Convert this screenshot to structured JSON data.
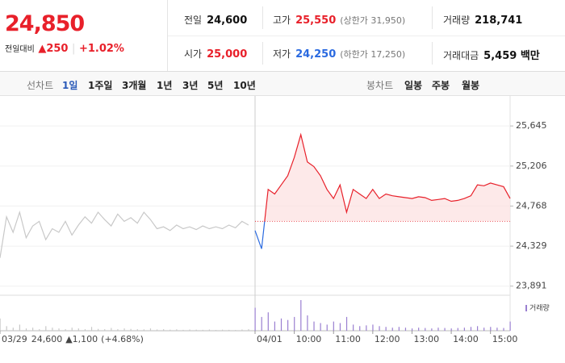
{
  "header": {
    "price": "24,850",
    "change_label": "전일대비",
    "change": "▲250",
    "change_pct": "+1.02%",
    "stats": [
      {
        "label": "전일",
        "value": "24,600"
      },
      {
        "label": "고가",
        "value": "25,550",
        "note": "(상한가 31,950)"
      },
      {
        "label": "거래량",
        "value": "218,741"
      },
      {
        "label": "시가",
        "value": "25,000"
      },
      {
        "label": "저가",
        "value": "24,250",
        "note": "(하한가 17,250)"
      },
      {
        "label": "거래대금",
        "value": "5,459 백만"
      }
    ]
  },
  "tabs": {
    "line_label": "선차트",
    "line": [
      "1일",
      "1주일",
      "3개월",
      "1년",
      "3년",
      "5년",
      "10년"
    ],
    "candle_label": "봉차트",
    "candle": [
      "일봉",
      "주봉",
      "월봉"
    ]
  },
  "chart_data": {
    "type": "line",
    "categories": [
      "03/29",
      null,
      null,
      null,
      null,
      null,
      null,
      null,
      null,
      null,
      null,
      null,
      null,
      null,
      null,
      null,
      null,
      null,
      null,
      null,
      null,
      null,
      null,
      null,
      null,
      null,
      null,
      null,
      null,
      null,
      null,
      null,
      null,
      null,
      null,
      null,
      null,
      null,
      null,
      "04/01",
      null,
      null,
      null,
      null,
      null,
      "10:00",
      null,
      null,
      null,
      null,
      null,
      "11:00",
      null,
      null,
      null,
      null,
      null,
      "12:00",
      null,
      null,
      null,
      null,
      null,
      "13:00",
      null,
      null,
      null,
      null,
      null,
      "14:00",
      null,
      null,
      null,
      null,
      null,
      "15:00",
      null,
      null,
      null
    ],
    "series": [
      {
        "color": "#c8c8c8",
        "volume_color": "#c8c8c8",
        "values": [
          24200,
          24650,
          24480,
          24700,
          24420,
          24550,
          24600,
          24400,
          24520,
          24480,
          24600,
          24450,
          24560,
          24650,
          24580,
          24700,
          24620,
          24550,
          24680,
          24600,
          24640,
          24580,
          24700,
          24620,
          24520,
          24540,
          24500,
          24560,
          24520,
          24540,
          24510,
          24550,
          24520,
          24540,
          24520,
          24560,
          24530,
          24600,
          24560,
          null,
          null,
          null,
          null,
          null,
          null,
          null,
          null,
          null,
          null,
          null,
          null,
          null,
          null,
          null,
          null,
          null,
          null,
          null,
          null,
          null,
          null,
          null,
          null,
          null,
          null,
          null,
          null,
          null,
          null,
          null,
          null,
          null,
          null,
          null,
          null,
          null,
          null,
          null,
          null
        ],
        "volume": [
          8000,
          3000,
          2000,
          4000,
          1500,
          2000,
          1000,
          3000,
          2000,
          1500,
          1000,
          2000,
          1500,
          1000,
          2500,
          1200,
          1000,
          1800,
          1000,
          1500,
          1200,
          1000,
          900,
          1500,
          800,
          1000,
          700,
          900,
          600,
          800,
          700,
          600,
          800,
          500,
          700,
          600,
          500,
          800,
          1000,
          null,
          null,
          null,
          null,
          null,
          null,
          null,
          null,
          null,
          null,
          null,
          null,
          null,
          null,
          null,
          null,
          null,
          null,
          null,
          null,
          null,
          null,
          null,
          null,
          null,
          null,
          null,
          null,
          null,
          null,
          null,
          null,
          null,
          null,
          null,
          null,
          null,
          null,
          null,
          null
        ]
      },
      {
        "color": "#e8202a",
        "down_color": "#2a6ae0",
        "fill": "#fde3e3",
        "volume_color": "#9a7fd1",
        "values": [
          null,
          null,
          null,
          null,
          null,
          null,
          null,
          null,
          null,
          null,
          null,
          null,
          null,
          null,
          null,
          null,
          null,
          null,
          null,
          null,
          null,
          null,
          null,
          null,
          null,
          null,
          null,
          null,
          null,
          null,
          null,
          null,
          null,
          null,
          null,
          null,
          null,
          null,
          null,
          24500,
          24300,
          24950,
          24900,
          25000,
          25100,
          25300,
          25550,
          25250,
          25200,
          25100,
          24950,
          24850,
          25000,
          24700,
          24950,
          24900,
          24850,
          24950,
          24850,
          24900,
          24880,
          24870,
          24860,
          24850,
          24870,
          24860,
          24830,
          24840,
          24850,
          24820,
          24830,
          24850,
          24880,
          25000,
          24990,
          25020,
          25000,
          24980,
          24850
        ],
        "volume": [
          null,
          null,
          null,
          null,
          null,
          null,
          null,
          null,
          null,
          null,
          null,
          null,
          null,
          null,
          null,
          null,
          null,
          null,
          null,
          null,
          null,
          null,
          null,
          null,
          null,
          null,
          null,
          null,
          null,
          null,
          null,
          null,
          null,
          null,
          null,
          null,
          null,
          null,
          null,
          15000,
          9000,
          12000,
          6000,
          8000,
          7000,
          9000,
          20000,
          10000,
          6000,
          5000,
          4000,
          6000,
          5000,
          9000,
          4000,
          3000,
          3500,
          4000,
          3000,
          2500,
          2000,
          2500,
          2000,
          1500,
          2000,
          1800,
          1500,
          2000,
          1800,
          1500,
          1800,
          2000,
          2500,
          3000,
          2000,
          2500,
          2000,
          1800,
          6000
        ]
      }
    ],
    "baseline": {
      "value": 24600,
      "label": "24,600"
    },
    "prev_change": "▲1,100",
    "prev_change_pct": "(+4.68%)",
    "volume_label": "거래량",
    "ylim": [
      23800,
      25920
    ],
    "yticks": [
      {
        "value": 23891,
        "label": "23,891"
      },
      {
        "value": 24329,
        "label": "24,329"
      },
      {
        "value": 24768,
        "label": "24,768"
      },
      {
        "value": 25206,
        "label": "25,206"
      },
      {
        "value": 25645,
        "label": "25,645"
      }
    ],
    "grid": true
  }
}
